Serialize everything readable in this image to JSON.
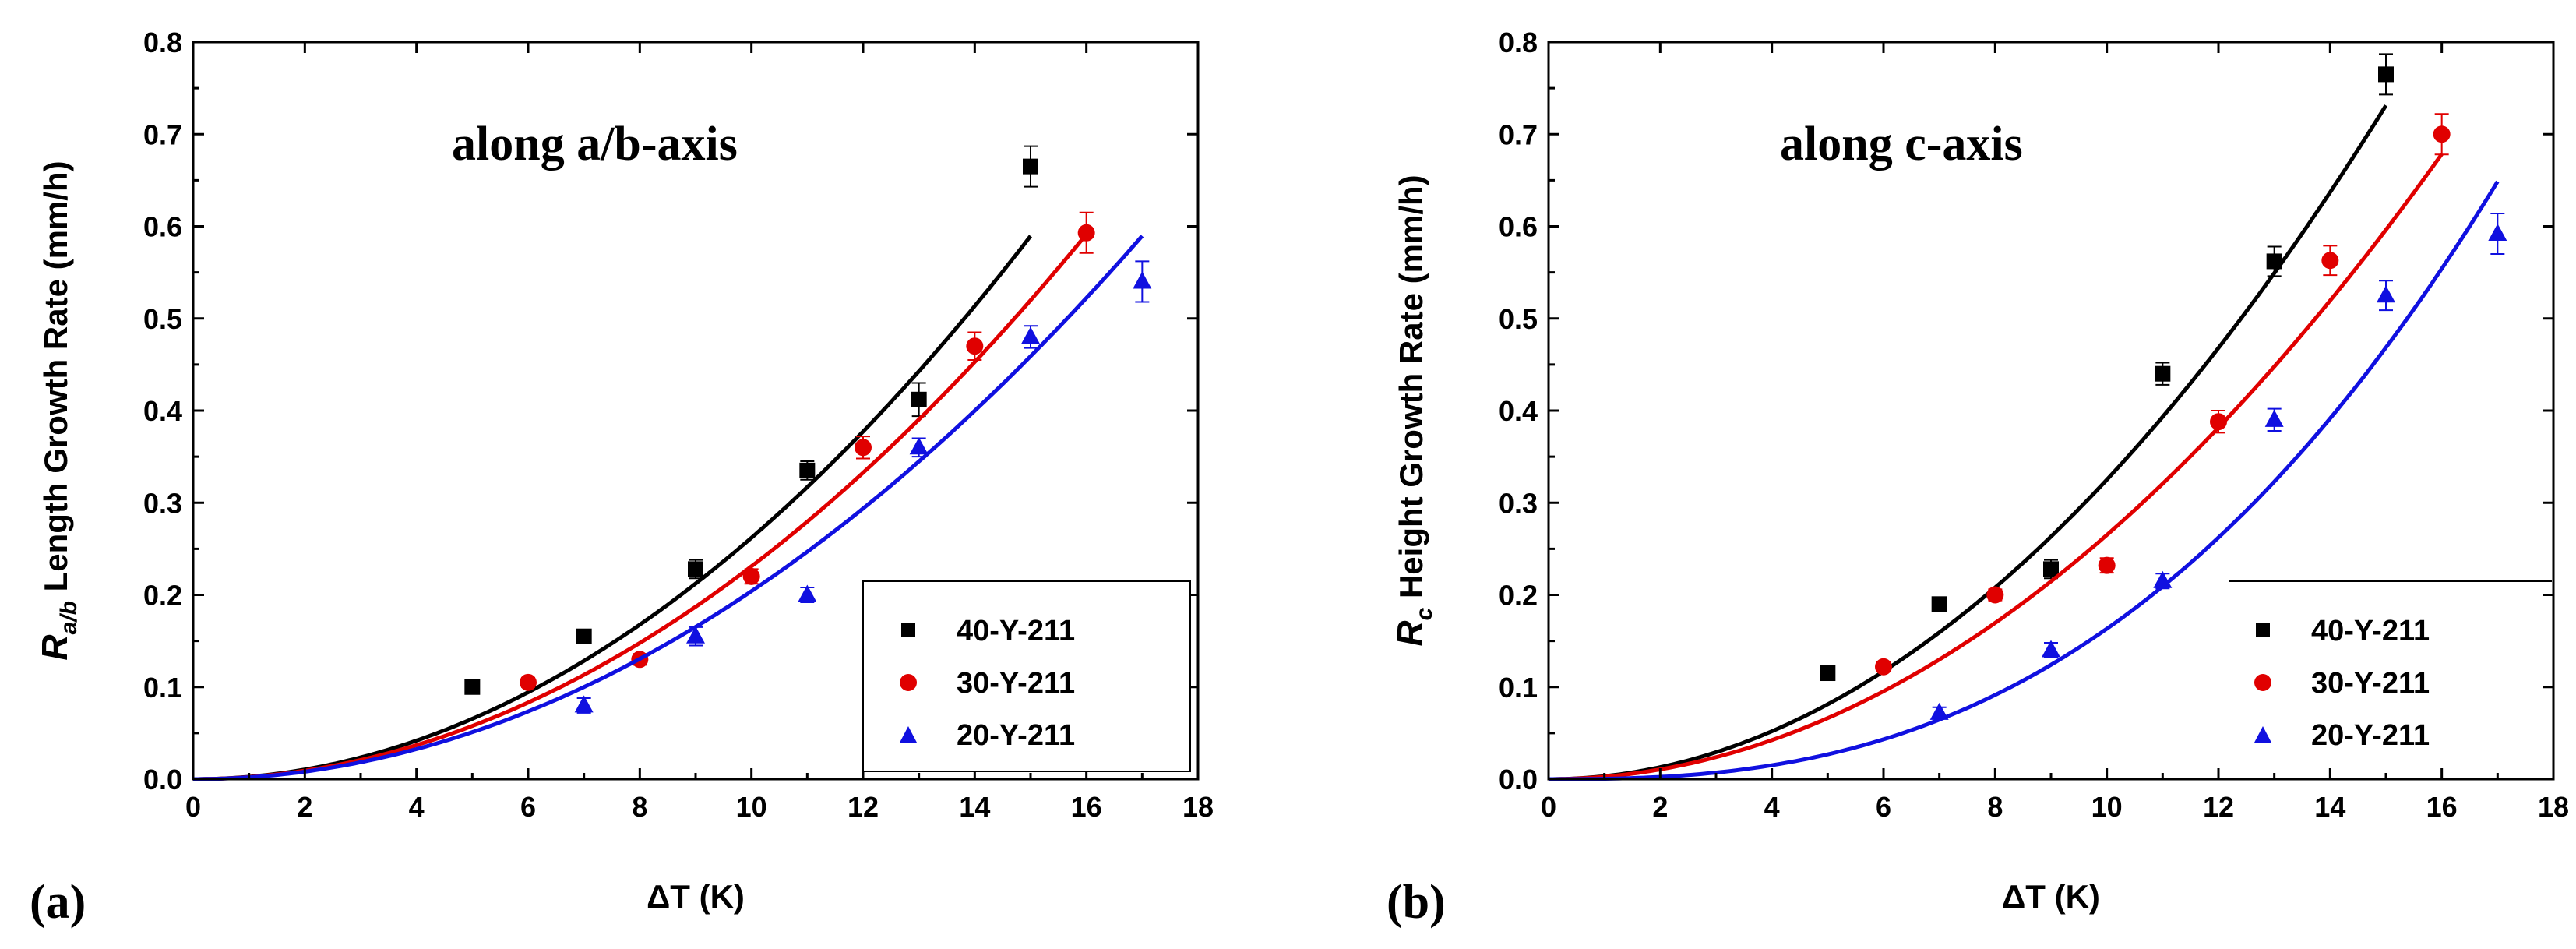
{
  "chart_data": [
    {
      "type": "scatter",
      "panel_label": "(a)",
      "annotation": "along a/b-axis",
      "ylabel_symbol": "R",
      "ylabel_subscript": "a/b",
      "ylabel_text": " Length Growth Rate (mm/h)",
      "xlabel": "ΔT (K)",
      "xlim": [
        0,
        18
      ],
      "ylim": [
        0,
        0.8
      ],
      "xticks": [
        "0",
        "2",
        "4",
        "6",
        "8",
        "10",
        "12",
        "14",
        "16",
        "18"
      ],
      "yticks": [
        "0.0",
        "0.1",
        "0.2",
        "0.3",
        "0.4",
        "0.5",
        "0.6",
        "0.7",
        "0.8"
      ],
      "legend_position": "bottom-right",
      "legend_box": true,
      "series": [
        {
          "name": "40-Y-211",
          "color": "#000000",
          "marker": "square",
          "points": [
            [
              5,
              0.1
            ],
            [
              7,
              0.155
            ],
            [
              9,
              0.228
            ],
            [
              11,
              0.335
            ],
            [
              13,
              0.412
            ],
            [
              15,
              0.665
            ]
          ],
          "errors": [
            0.005,
            0.007,
            0.01,
            0.01,
            0.018,
            0.022
          ],
          "fit": {
            "k": 0.00262,
            "n": 2.0,
            "xmax": 15
          }
        },
        {
          "name": "30-Y-211",
          "color": "#e00000",
          "marker": "circle",
          "points": [
            [
              6,
              0.105
            ],
            [
              8,
              0.13
            ],
            [
              10,
              0.22
            ],
            [
              12,
              0.36
            ],
            [
              14,
              0.47
            ],
            [
              16,
              0.593
            ]
          ],
          "errors": [
            0.005,
            0.006,
            0.008,
            0.012,
            0.015,
            0.022
          ],
          "fit": {
            "k": 0.00231,
            "n": 2.0,
            "xmax": 16
          }
        },
        {
          "name": "20-Y-211",
          "color": "#1010e0",
          "marker": "triangle",
          "points": [
            [
              7,
              0.08
            ],
            [
              9,
              0.155
            ],
            [
              11,
              0.2
            ],
            [
              13,
              0.36
            ],
            [
              15,
              0.48
            ],
            [
              17,
              0.54
            ]
          ],
          "errors": [
            0.008,
            0.01,
            0.008,
            0.01,
            0.012,
            0.022
          ],
          "fit": {
            "k": 0.00204,
            "n": 2.0,
            "xmax": 17
          }
        }
      ]
    },
    {
      "type": "scatter",
      "panel_label": "(b)",
      "annotation": "along c-axis",
      "ylabel_symbol": "R",
      "ylabel_subscript": "c",
      "ylabel_text": " Height Growth Rate (mm/h)",
      "xlabel": "ΔT (K)",
      "xlim": [
        0,
        18
      ],
      "ylim": [
        0,
        0.8
      ],
      "xticks": [
        "0",
        "2",
        "4",
        "6",
        "8",
        "10",
        "12",
        "14",
        "16",
        "18"
      ],
      "yticks": [
        "0.0",
        "0.1",
        "0.2",
        "0.3",
        "0.4",
        "0.5",
        "0.6",
        "0.7",
        "0.8"
      ],
      "legend_position": "bottom-right",
      "legend_box": false,
      "series": [
        {
          "name": "40-Y-211",
          "color": "#000000",
          "marker": "square",
          "points": [
            [
              5,
              0.115
            ],
            [
              7,
              0.19
            ],
            [
              9,
              0.228
            ],
            [
              11,
              0.44
            ],
            [
              13,
              0.562
            ],
            [
              15,
              0.765
            ]
          ],
          "errors": [
            0.005,
            0.007,
            0.01,
            0.012,
            0.016,
            0.022
          ],
          "fit": {
            "k": 0.00325,
            "n": 2.0,
            "xmax": 15
          }
        },
        {
          "name": "30-Y-211",
          "color": "#e00000",
          "marker": "circle",
          "points": [
            [
              6,
              0.122
            ],
            [
              8,
              0.2
            ],
            [
              10,
              0.232
            ],
            [
              12,
              0.388
            ],
            [
              14,
              0.563
            ],
            [
              16,
              0.7
            ]
          ],
          "errors": [
            0.005,
            0.006,
            0.008,
            0.012,
            0.016,
            0.022
          ],
          "fit": {
            "k": 0.00265,
            "n": 2.0,
            "xmax": 16
          }
        },
        {
          "name": "20-Y-211",
          "color": "#1010e0",
          "marker": "triangle",
          "points": [
            [
              7,
              0.072
            ],
            [
              9,
              0.14
            ],
            [
              11,
              0.215
            ],
            [
              13,
              0.39
            ],
            [
              15,
              0.525
            ],
            [
              17,
              0.592
            ]
          ],
          "errors": [
            0.006,
            0.008,
            0.008,
            0.012,
            0.016,
            0.022
          ],
          "fit": {
            "k": 0.00041,
            "n": 2.6,
            "xmax": 17
          }
        }
      ]
    }
  ]
}
